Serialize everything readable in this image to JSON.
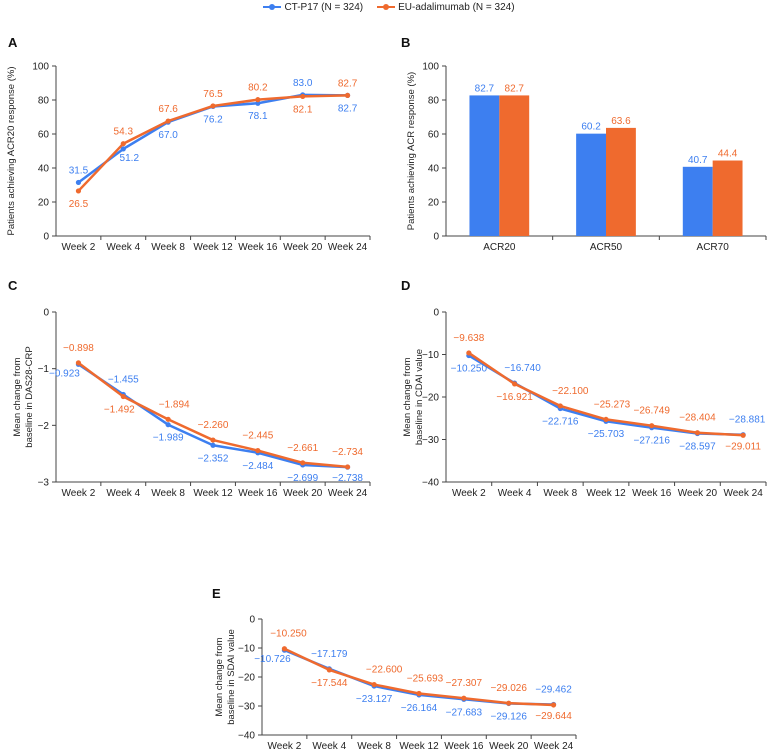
{
  "legend": {
    "series1": "CT-P17 (N = 324)",
    "series2": "EU-adalimumab (N = 324)"
  },
  "colors": {
    "ctp17": "#3d7ff0",
    "eu": "#ef6a2e"
  },
  "chart_data": [
    {
      "id": "A",
      "type": "line",
      "panel_label": "A",
      "categories": [
        "Week 2",
        "Week 4",
        "Week 8",
        "Week 12",
        "Week 16",
        "Week 20",
        "Week 24"
      ],
      "ylabel": "Patients achieving ACR20 response (%)",
      "ylim": [
        0,
        100
      ],
      "yticks": [
        0,
        20,
        40,
        60,
        80,
        100
      ],
      "series": [
        {
          "name": "CT-P17",
          "values": [
            31.5,
            51.2,
            67.0,
            76.2,
            78.1,
            83.0,
            82.7
          ],
          "labels": [
            "31.5",
            "51.2",
            "67.0",
            "76.2",
            "78.1",
            "83.0",
            "82.7"
          ]
        },
        {
          "name": "EU-adalimumab",
          "values": [
            26.5,
            54.3,
            67.6,
            76.5,
            80.2,
            82.1,
            82.7
          ],
          "labels": [
            "26.5",
            "54.3",
            "67.6",
            "76.5",
            "80.2",
            "82.1",
            "82.7"
          ]
        }
      ]
    },
    {
      "id": "B",
      "type": "bar",
      "panel_label": "B",
      "categories": [
        "ACR20",
        "ACR50",
        "ACR70"
      ],
      "ylabel": "Patients achieving ACR response (%)",
      "ylim": [
        0,
        100
      ],
      "yticks": [
        0,
        20,
        40,
        60,
        80,
        100
      ],
      "series": [
        {
          "name": "CT-P17",
          "values": [
            82.7,
            60.2,
            40.7
          ],
          "labels": [
            "82.7",
            "60.2",
            "40.7"
          ]
        },
        {
          "name": "EU-adalimumab",
          "values": [
            82.7,
            63.6,
            44.4
          ],
          "labels": [
            "82.7",
            "63.6",
            "44.4"
          ]
        }
      ]
    },
    {
      "id": "C",
      "type": "line",
      "panel_label": "C",
      "categories": [
        "Week 2",
        "Week 4",
        "Week 8",
        "Week 12",
        "Week 16",
        "Week 20",
        "Week 24"
      ],
      "ylabel": "Mean change from baseline in DAS28-CRP",
      "ylim": [
        -3,
        0
      ],
      "yticks": [
        0,
        -1,
        -2,
        -3
      ],
      "yticklabels": [
        "0",
        "−1",
        "−2",
        "−3"
      ],
      "series": [
        {
          "name": "CT-P17",
          "values": [
            -0.923,
            -1.455,
            -1.989,
            -2.352,
            -2.484,
            -2.699,
            -2.738
          ],
          "labels": [
            "−0.923",
            "−1.455",
            "−1.989",
            "−2.352",
            "−2.484",
            "−2.699",
            "−2.738"
          ]
        },
        {
          "name": "EU-adalimumab",
          "values": [
            -0.898,
            -1.492,
            -1.894,
            -2.26,
            -2.445,
            -2.661,
            -2.734
          ],
          "labels": [
            "−0.898",
            "−1.492",
            "−1.894",
            "−2.260",
            "−2.445",
            "−2.661",
            "−2.734"
          ]
        }
      ]
    },
    {
      "id": "D",
      "type": "line",
      "panel_label": "D",
      "categories": [
        "Week 2",
        "Week 4",
        "Week 8",
        "Week 12",
        "Week 16",
        "Week 20",
        "Week 24"
      ],
      "ylabel": "Mean change from baseline in CDAI value",
      "ylim": [
        -40,
        0
      ],
      "yticks": [
        0,
        -10,
        -20,
        -30,
        -40
      ],
      "yticklabels": [
        "0",
        "−10",
        "−20",
        "−30",
        "−40"
      ],
      "series": [
        {
          "name": "CT-P17",
          "values": [
            -10.25,
            -16.74,
            -22.716,
            -25.703,
            -27.216,
            -28.597,
            -28.881
          ],
          "labels": [
            "−10.250",
            "−16.740",
            "−22.716",
            "−25.703",
            "−27.216",
            "−28.597",
            "−28.881"
          ]
        },
        {
          "name": "EU-adalimumab",
          "values": [
            -9.638,
            -16.921,
            -22.1,
            -25.273,
            -26.749,
            -28.404,
            -29.011
          ],
          "labels": [
            "−9.638",
            "−16.921",
            "−22.100",
            "−25.273",
            "−26.749",
            "−28.404",
            "−29.011"
          ]
        }
      ]
    },
    {
      "id": "E",
      "type": "line",
      "panel_label": "E",
      "categories": [
        "Week 2",
        "Week 4",
        "Week 8",
        "Week 12",
        "Week 16",
        "Week 20",
        "Week 24"
      ],
      "ylabel": "Mean change from baseline in SDAI value",
      "ylim": [
        -40,
        0
      ],
      "yticks": [
        0,
        -10,
        -20,
        -30,
        -40
      ],
      "yticklabels": [
        "0",
        "−10",
        "−20",
        "−30",
        "−40"
      ],
      "series": [
        {
          "name": "CT-P17",
          "values": [
            -10.726,
            -17.179,
            -23.127,
            -26.164,
            -27.683,
            -29.126,
            -29.462
          ],
          "labels": [
            "−10.726",
            "−17.179",
            "−23.127",
            "−26.164",
            "−27.683",
            "−29.126",
            "−29.462"
          ]
        },
        {
          "name": "EU-adalimumab",
          "values": [
            -10.25,
            -17.544,
            -22.6,
            -25.693,
            -27.307,
            -29.026,
            -29.644
          ],
          "labels": [
            "−10.250",
            "−17.544",
            "−22.600",
            "−25.693",
            "−27.307",
            "−29.026",
            "−29.644"
          ]
        }
      ]
    }
  ]
}
